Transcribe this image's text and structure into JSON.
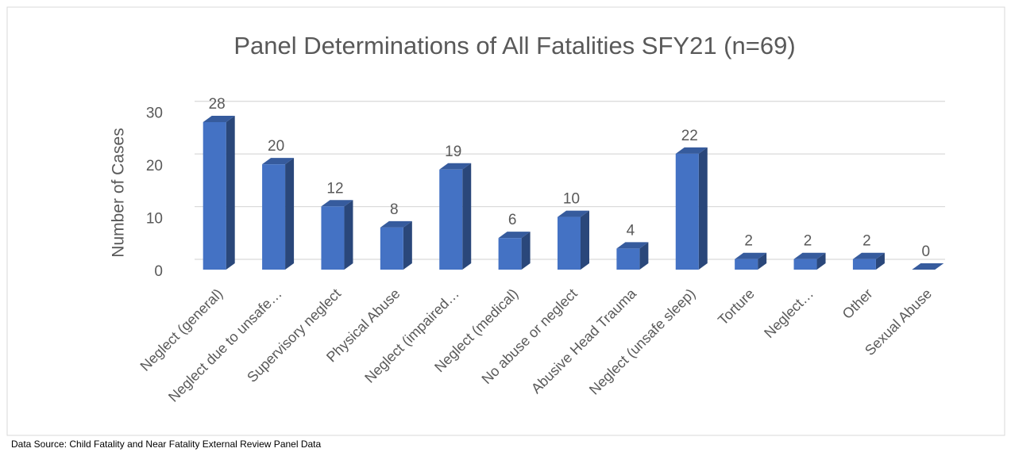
{
  "chart_data": {
    "type": "bar3d",
    "title": "Panel Determinations of All Fatalities SFY21 (n=69)",
    "y_label": "Number of Cases",
    "categories": [
      "Neglect (general)",
      "Neglect due to unsafe…",
      "Supervisory neglect",
      "Physical Abuse",
      "Neglect (impaired…",
      "Neglect (medical)",
      "No abuse or neglect",
      "Abusive Head Trauma",
      "Neglect (unsafe sleep)",
      "Torture",
      "Neglect…",
      "Other",
      "Sexual Abuse"
    ],
    "values": [
      28,
      20,
      12,
      8,
      19,
      6,
      10,
      4,
      22,
      2,
      2,
      2,
      0
    ],
    "color": "#4472c4",
    "ylim": [
      0,
      30
    ],
    "yticks": [
      0,
      10,
      20,
      30
    ],
    "grid": true,
    "note": "Data Source: Child Fatality and Near Fatality External Review Panel Data"
  }
}
